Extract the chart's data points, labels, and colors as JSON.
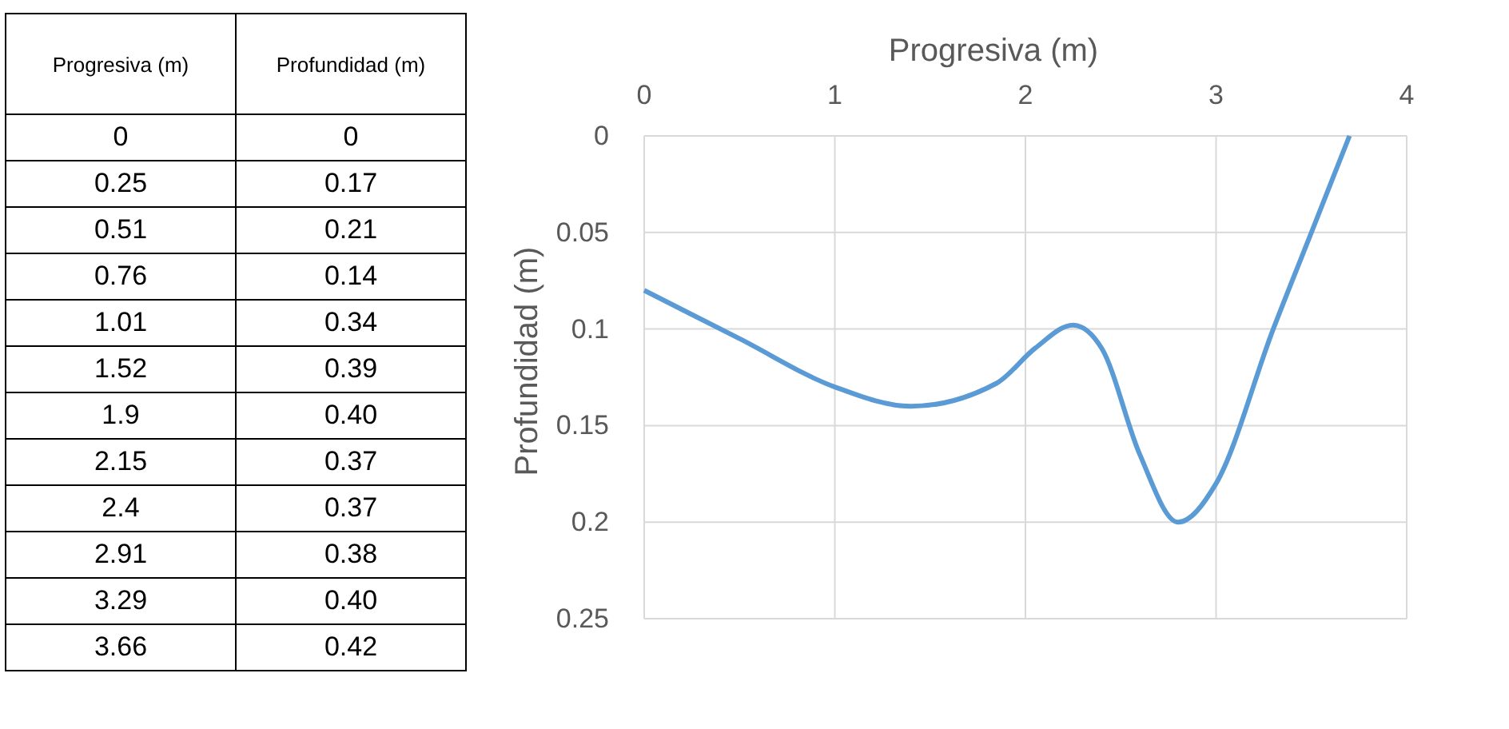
{
  "chart_data": [
    {
      "type": "other",
      "xlabel": "Progresiva (m)",
      "ylabel": "Profundidad (m)",
      "categories": [
        "0",
        "0.25",
        "0.51",
        "0.76",
        "1.01",
        "1.52",
        "1.9",
        "2.15",
        "2.4",
        "2.91",
        "3.29",
        "3.66"
      ],
      "value_labels": [
        "0",
        "0.17",
        "0.21",
        "0.14",
        "0.34",
        "0.39",
        "0.40",
        "0.37",
        "0.37",
        "0.38",
        "0.40",
        "0.42"
      ]
    },
    {
      "type": "line",
      "xlabel": "Progresiva (m)",
      "ylabel": "Profundidad (m)",
      "xlim": [
        0,
        4
      ],
      "xticks": [
        0,
        1,
        2,
        3,
        4
      ],
      "ylim": [
        0.25,
        0
      ],
      "yticks": [
        0,
        0.05,
        0.1,
        0.15,
        0.2,
        0.25
      ],
      "grid": true,
      "marker": "none",
      "series": [
        {
          "color": "#5b9bd5",
          "x": [
            0,
            0.5,
            1,
            1.4,
            1.85,
            2.05,
            2.25,
            2.4,
            2.6,
            2.8,
            3.0,
            3.3,
            3.5,
            3.7
          ],
          "values": [
            0.08,
            0.105,
            0.13,
            0.14,
            0.128,
            0.11,
            0.098,
            0.11,
            0.165,
            0.2,
            0.18,
            0.1,
            0.05,
            0
          ]
        }
      ]
    }
  ]
}
